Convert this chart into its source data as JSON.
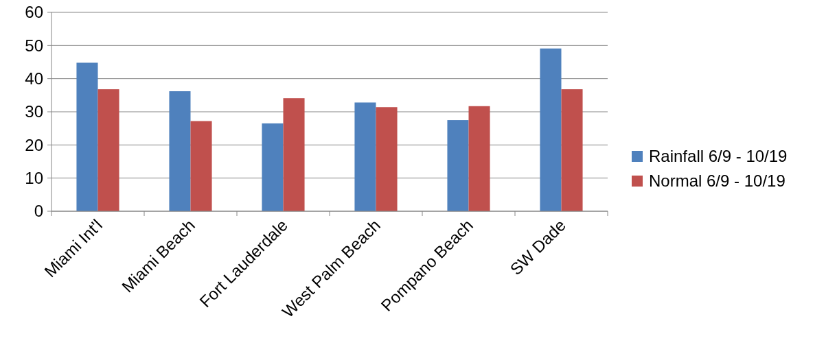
{
  "chart_data": {
    "type": "bar",
    "categories": [
      "Miami Int'l",
      "Miami Beach",
      "Fort Lauderdale",
      "West Palm Beach",
      "Pompano Beach",
      "SW Dade"
    ],
    "series": [
      {
        "name": "Rainfall 6/9 - 10/19",
        "color": "#4f81bd",
        "values": [
          44.8,
          36.2,
          26.5,
          32.8,
          27.5,
          49.1
        ]
      },
      {
        "name": "Normal 6/9 - 10/19",
        "color": "#c0504d",
        "values": [
          36.8,
          27.2,
          34.1,
          31.4,
          31.7,
          36.8
        ]
      }
    ],
    "ylim": [
      0,
      60
    ],
    "yticks": [
      0,
      10,
      20,
      30,
      40,
      50,
      60
    ],
    "grid": "y",
    "legend": "right"
  }
}
